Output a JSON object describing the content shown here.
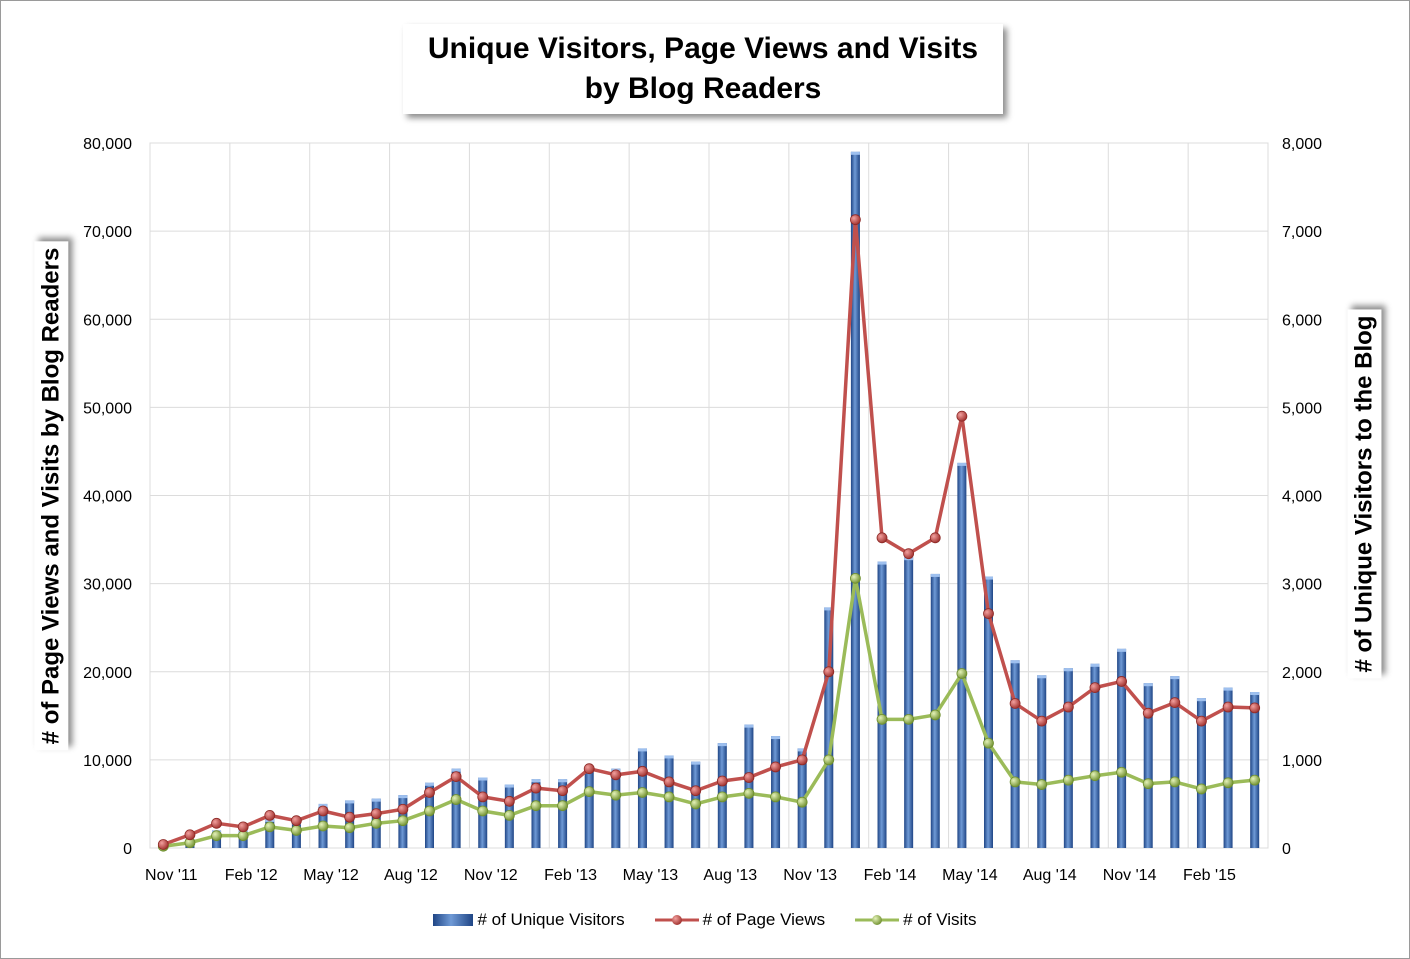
{
  "chart_data": {
    "type": "bar+line",
    "title_line1": "Unique Visitors, Page Views and Visits",
    "title_line2": "by Blog Readers",
    "ylabel_left": "# of Page Views and Visits by Blog Readers",
    "ylabel_right": "# of Unique Visitors to the Blog",
    "ylim_left": [
      0,
      80000
    ],
    "ylim_right": [
      0,
      8000
    ],
    "yticks_left": [
      "0",
      "10,000",
      "20,000",
      "30,000",
      "40,000",
      "50,000",
      "60,000",
      "70,000",
      "80,000"
    ],
    "yticks_right": [
      "0",
      "1,000",
      "2,000",
      "3,000",
      "4,000",
      "5,000",
      "6,000",
      "7,000",
      "8,000"
    ],
    "xtick_labels": [
      "Nov '11",
      "Feb '12",
      "May '12",
      "Aug '12",
      "Nov '12",
      "Feb '13",
      "May '13",
      "Aug '13",
      "Nov '13",
      "Feb '14",
      "May '14",
      "Aug '14",
      "Nov '14",
      "Feb '15"
    ],
    "categories": [
      "Nov '11",
      "Dec '11",
      "Jan '12",
      "Feb '12",
      "Mar '12",
      "Apr '12",
      "May '12",
      "Jun '12",
      "Jul '12",
      "Aug '12",
      "Sep '12",
      "Oct '12",
      "Nov '12",
      "Dec '12",
      "Jan '13",
      "Feb '13",
      "Mar '13",
      "Apr '13",
      "May '13",
      "Jun '13",
      "Jul '13",
      "Aug '13",
      "Sep '13",
      "Oct '13",
      "Nov '13",
      "Dec '13",
      "Jan '14",
      "Feb '14",
      "Mar '14",
      "Apr '14",
      "May '14",
      "Jun '14",
      "Jul '14",
      "Aug '14",
      "Sep '14",
      "Oct '14",
      "Nov '14",
      "Dec '14",
      "Jan '15",
      "Feb '15",
      "Mar '15",
      "Apr '15"
    ],
    "series": [
      {
        "name": "# of Unique Visitors",
        "axis": "right",
        "kind": "bar",
        "color": "#4a78bf",
        "values": [
          30,
          100,
          200,
          200,
          330,
          300,
          500,
          540,
          560,
          600,
          740,
          900,
          800,
          720,
          780,
          780,
          900,
          900,
          1130,
          1050,
          980,
          1190,
          1400,
          1270,
          1130,
          2730,
          7900,
          3250,
          3300,
          3110,
          4370,
          3080,
          2130,
          1960,
          2040,
          2090,
          2260,
          1870,
          1950,
          1700,
          1820,
          1770
        ]
      },
      {
        "name": "# of Page Views",
        "axis": "left",
        "kind": "line",
        "color": "#c0504d",
        "values": [
          400,
          1500,
          2800,
          2400,
          3700,
          3100,
          4200,
          3500,
          3900,
          4400,
          6300,
          8100,
          5800,
          5300,
          6800,
          6500,
          9000,
          8300,
          8700,
          7500,
          6500,
          7600,
          8000,
          9200,
          10000,
          20000,
          71300,
          35200,
          33400,
          35200,
          49000,
          26600,
          16400,
          14400,
          16000,
          18200,
          18900,
          15300,
          16500,
          14400,
          16000,
          15900
        ]
      },
      {
        "name": "# of Visits",
        "axis": "left",
        "kind": "line",
        "color": "#9bbb59",
        "values": [
          200,
          600,
          1400,
          1400,
          2400,
          2000,
          2500,
          2300,
          2800,
          3100,
          4200,
          5500,
          4200,
          3700,
          4800,
          4800,
          6400,
          6000,
          6300,
          5800,
          5000,
          5800,
          6200,
          5800,
          5200,
          10000,
          30600,
          14600,
          14600,
          15100,
          19800,
          11900,
          7500,
          7200,
          7700,
          8200,
          8600,
          7300,
          7500,
          6700,
          7400,
          7700
        ]
      }
    ],
    "legend_position": "bottom"
  }
}
